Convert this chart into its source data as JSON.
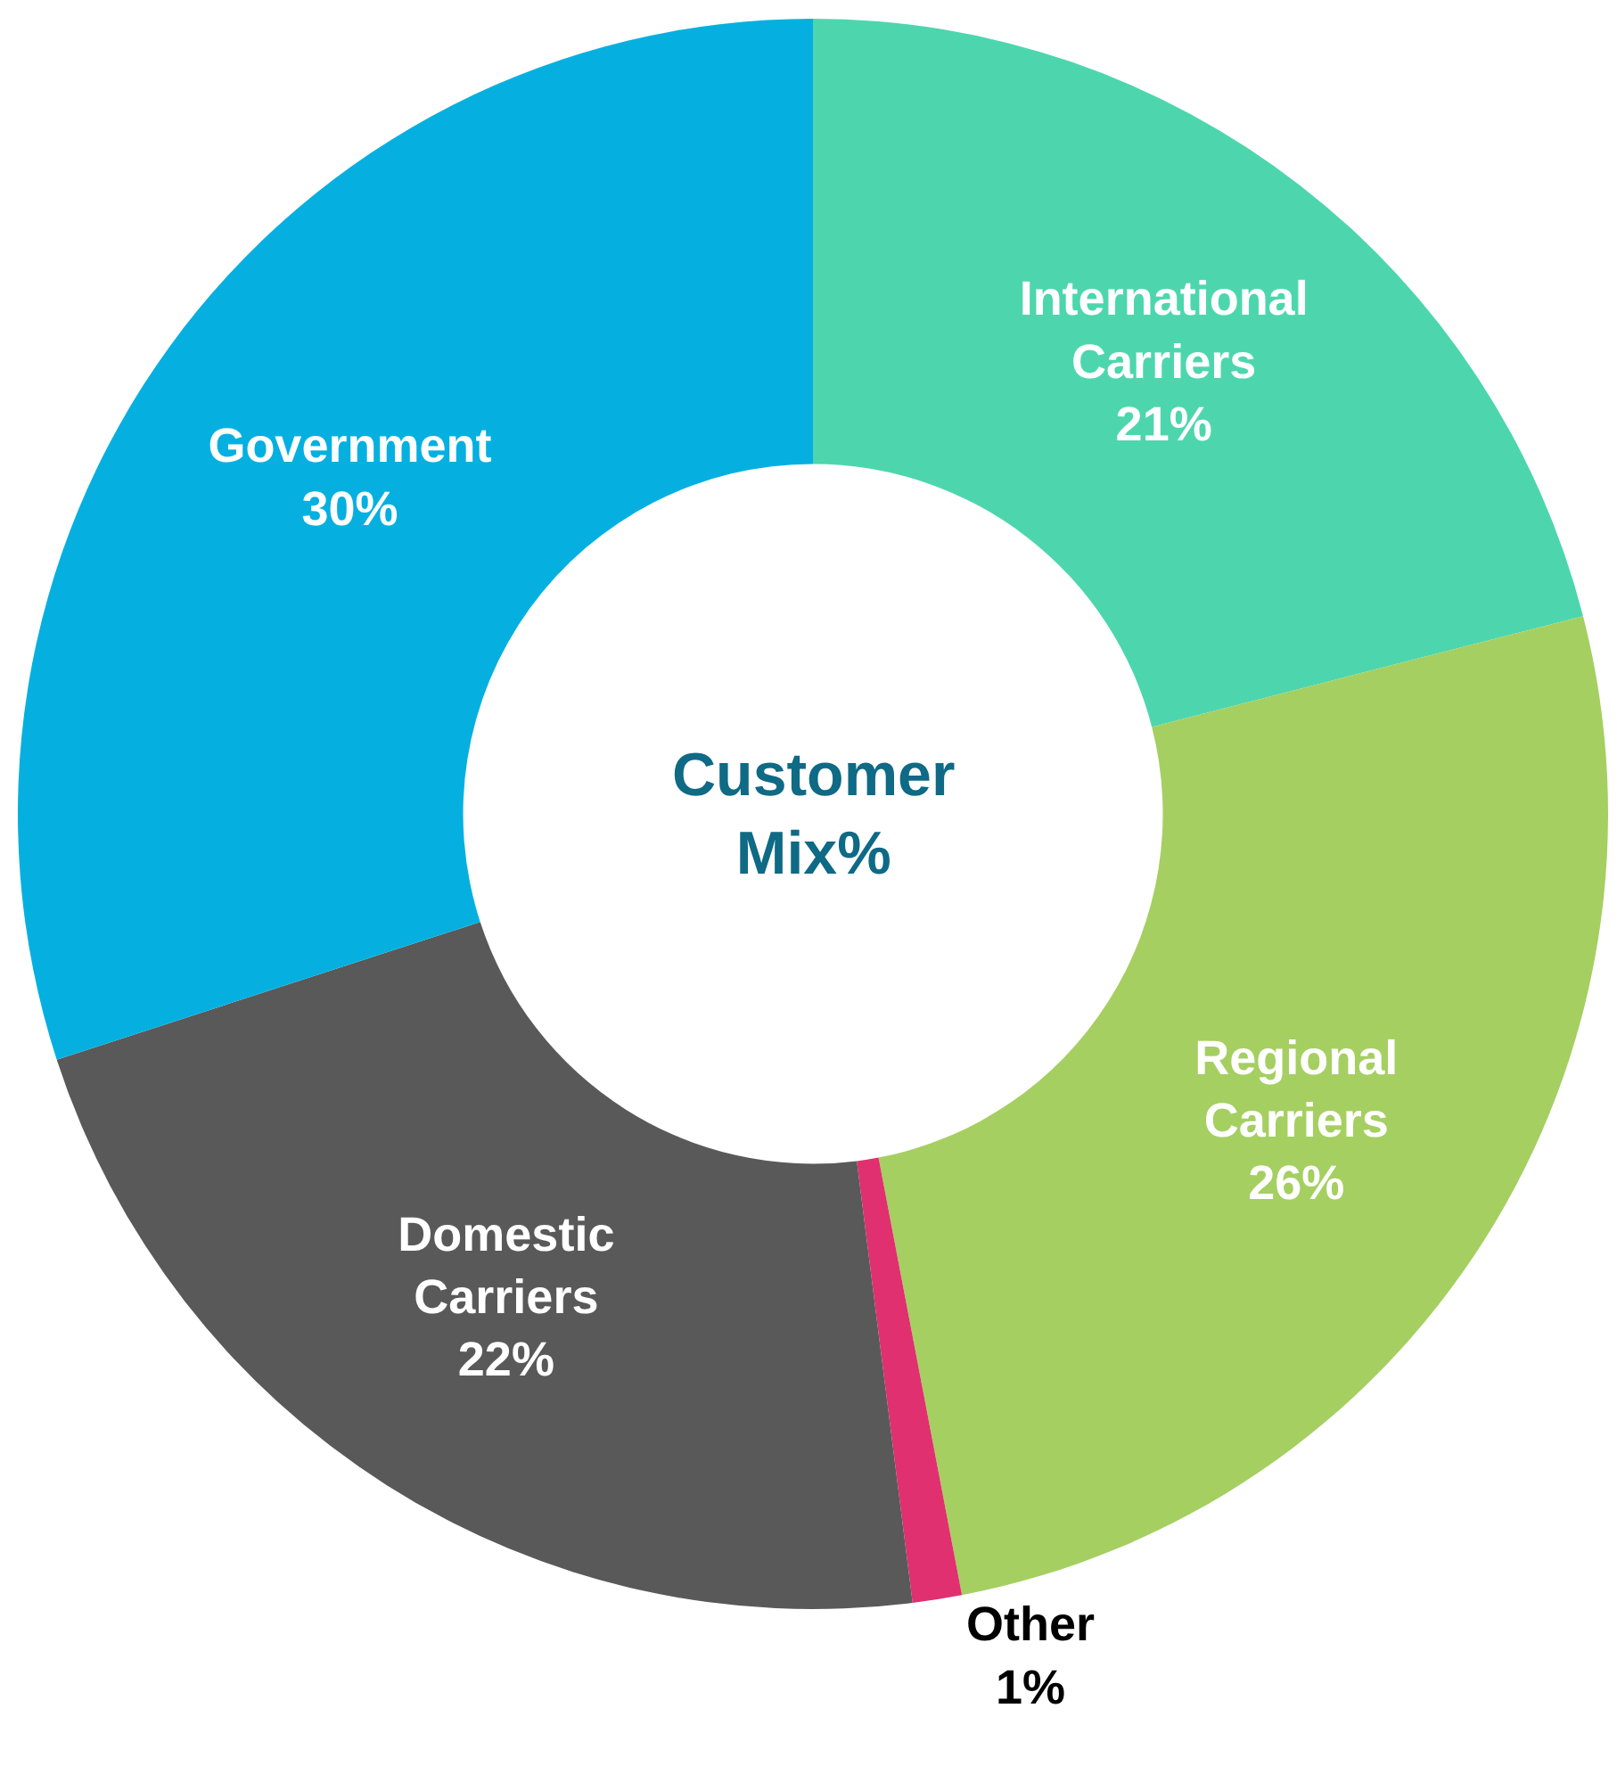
{
  "chart_data": {
    "type": "donut",
    "title": "Customer Mix%",
    "categories": [
      "International Carriers",
      "Regional Carriers",
      "Other",
      "Domestic Carriers",
      "Government"
    ],
    "values": [
      21,
      26,
      1,
      22,
      30
    ],
    "value_labels": [
      "21%",
      "26%",
      "1%",
      "22%",
      "30%"
    ],
    "colors": [
      "#4dd6ae",
      "#a5cf61",
      "#e0306f",
      "#595959",
      "#05b0e0"
    ],
    "legend": false
  }
}
